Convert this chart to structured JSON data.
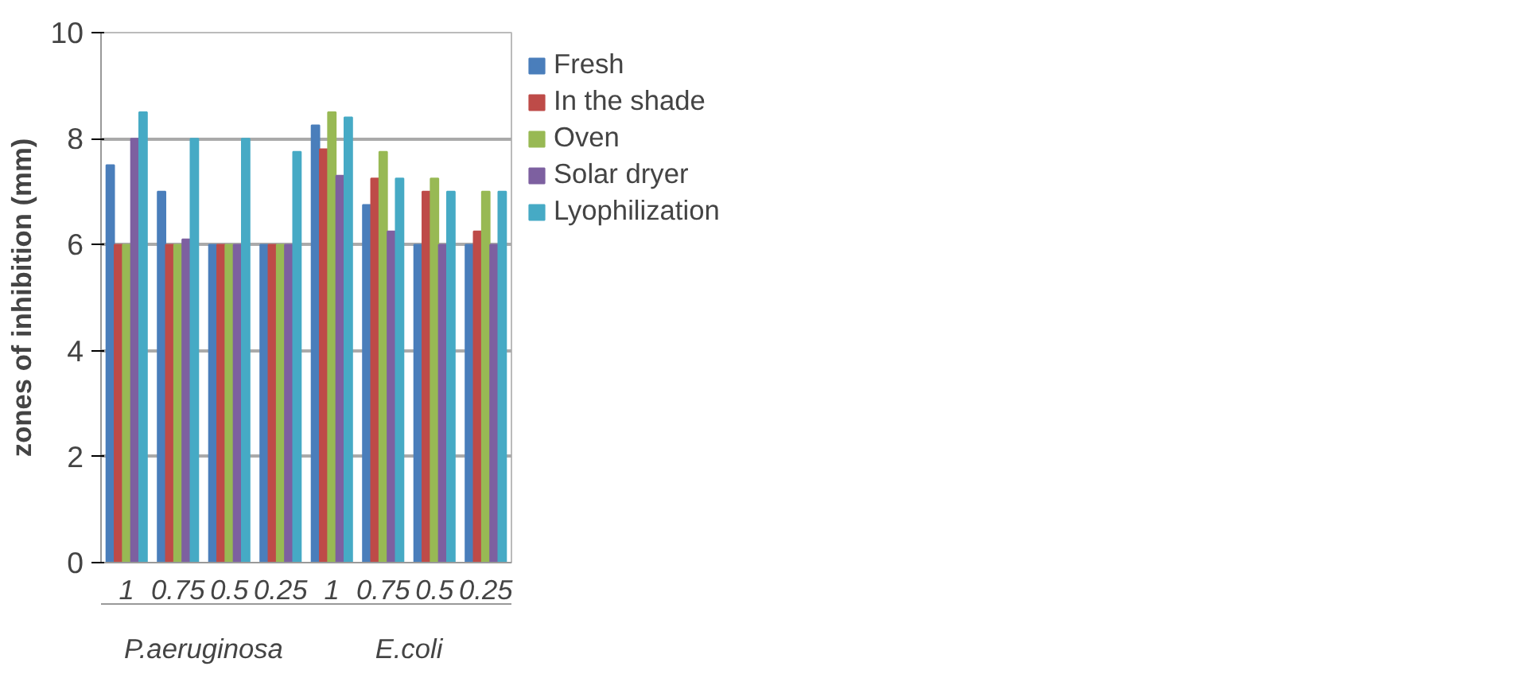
{
  "chart_data": {
    "type": "bar",
    "ylabel": "zones of inhibition (mm)",
    "categories": [
      "1",
      "0.75",
      "0.5",
      "0.25",
      "1",
      "0.75",
      "0.5",
      "0.25"
    ],
    "annotations": [
      "P.aeruginosa",
      "E.coli"
    ],
    "series": [
      {
        "name": "Fresh",
        "color": "#4a7ebb",
        "values": [
          7.5,
          7,
          6,
          6,
          8.25,
          6.75,
          6,
          6
        ]
      },
      {
        "name": "In the shade",
        "color": "#be4b48",
        "values": [
          6,
          6,
          6,
          6,
          7.8,
          7.25,
          7,
          6.25
        ]
      },
      {
        "name": "Oven",
        "color": "#98b954",
        "values": [
          6,
          6,
          6,
          6,
          8.5,
          7.75,
          7.25,
          7
        ]
      },
      {
        "name": "Solar dryer",
        "color": "#7d60a0",
        "values": [
          8,
          6.1,
          6,
          6,
          7.3,
          6.25,
          6,
          6
        ]
      },
      {
        "name": "Lyophilization",
        "color": "#46aac5",
        "values": [
          8.5,
          8,
          8,
          7.75,
          8.4,
          7.25,
          7,
          7
        ]
      }
    ],
    "ylim": [
      0,
      10
    ],
    "yticks": [
      0,
      2,
      4,
      6,
      8,
      10
    ],
    "grid": "y",
    "legend": "top right"
  }
}
